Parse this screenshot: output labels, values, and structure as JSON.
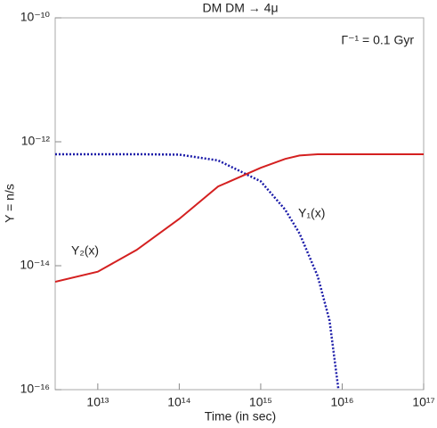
{
  "chart_data": {
    "type": "line",
    "title": "DM DM → 4μ",
    "annotation": "Γ⁻¹ = 0.1 Gyr",
    "xlabel": "Time (in sec)",
    "ylabel": "Y = n/s",
    "x": [
      3000000000000.0,
      10000000000000.0,
      30000000000000.0,
      100000000000000.0,
      300000000000000.0,
      1000000000000000.0,
      2000000000000000.0,
      3000000000000000.0,
      5000000000000000.0,
      7000000000000000.0,
      9000000000000000.0,
      1e+17
    ],
    "series": [
      {
        "name": "Y₁(x)",
        "color": "#1a1aa8",
        "style": "dotted",
        "values": [
          6.3e-13,
          6.3e-13,
          6.3e-13,
          6.2e-13,
          5e-13,
          2.3e-13,
          8e-14,
          3.3e-14,
          6.8e-15,
          1.3e-15,
          1e-16,
          null
        ]
      },
      {
        "name": "Y₂(x)",
        "color": "#d42020",
        "style": "solid",
        "values": [
          5.5e-15,
          8e-15,
          1.8e-14,
          5.7e-14,
          1.9e-13,
          3.8e-13,
          5.3e-13,
          6e-13,
          6.3e-13,
          6.3e-13,
          6.3e-13,
          6.3e-13
        ]
      }
    ],
    "xlim": [
      3000000000000.0,
      1e+17
    ],
    "ylim": [
      1e-16,
      1e-10
    ],
    "xticks": [
      {
        "value": 10000000000000.0,
        "label": "10¹³"
      },
      {
        "value": 100000000000000.0,
        "label": "10¹⁴"
      },
      {
        "value": 1000000000000000.0,
        "label": "10¹⁵"
      },
      {
        "value": 1e+16,
        "label": "10¹⁶"
      },
      {
        "value": 1e+17,
        "label": "10¹⁷"
      }
    ],
    "yticks": [
      {
        "value": 1e-16,
        "label": "10⁻¹⁶"
      },
      {
        "value": 1e-14,
        "label": "10⁻¹⁴"
      },
      {
        "value": 1e-12,
        "label": "10⁻¹²"
      },
      {
        "value": 1e-10,
        "label": "10⁻¹⁰"
      }
    ],
    "xlog": true,
    "ylog": true,
    "grid": false
  }
}
